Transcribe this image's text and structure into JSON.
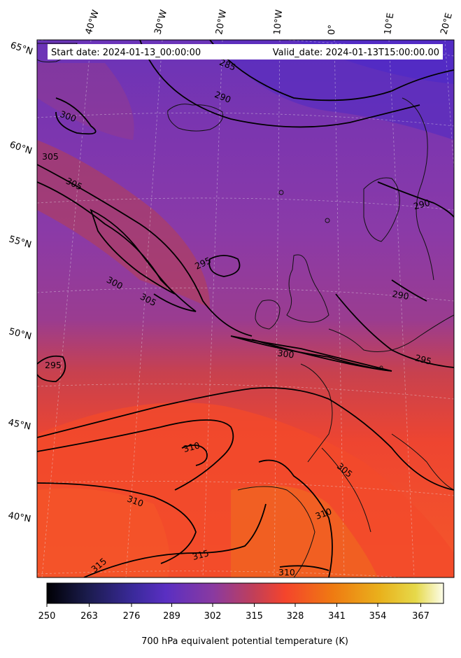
{
  "header": {
    "start_label": "Start date: 2024-01-13_00:00:00",
    "valid_label": "Valid_date: 2024-01-13T15:00:00.00"
  },
  "longitude_labels": [
    "40°W",
    "30°W",
    "20°W",
    "10°W",
    "0°",
    "10°E",
    "20°E"
  ],
  "latitude_labels": [
    "65°N",
    "60°N",
    "55°N",
    "50°N",
    "45°N",
    "40°N"
  ],
  "contour_labels": [
    "285",
    "290",
    "300",
    "305",
    "305",
    "290",
    "295",
    "300",
    "305",
    "290",
    "300",
    "295",
    "295",
    "310",
    "305",
    "310",
    "310",
    "315",
    "315",
    "310"
  ],
  "colorbar": {
    "ticks": [
      "250",
      "263",
      "276",
      "289",
      "302",
      "315",
      "328",
      "341",
      "354",
      "367"
    ],
    "label": "700 hPa equivalent potential temperature (K)",
    "colors": [
      "#000004",
      "#1a1b4b",
      "#3b2a9c",
      "#5a2fc2",
      "#8a3aa0",
      "#c03f5a",
      "#f4442c",
      "#ef7a12",
      "#e9b11c",
      "#e6d94a",
      "#fcfdea"
    ]
  }
}
